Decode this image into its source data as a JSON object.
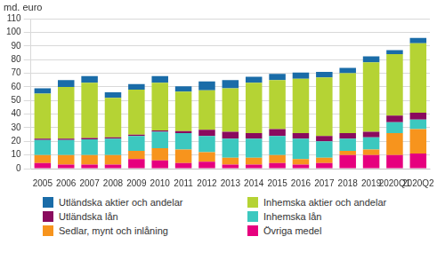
{
  "chart_data": {
    "type": "bar",
    "ylabel": "md. euro",
    "stacked": true,
    "grid": true,
    "legend": "bottom",
    "categories": [
      "2005",
      "2006",
      "2007",
      "2008",
      "2009",
      "2010",
      "2011",
      "2012",
      "2013",
      "2014",
      "2015",
      "2016",
      "2017",
      "2018",
      "2019",
      "2020Q1",
      "2020Q2"
    ],
    "ylim": [
      0,
      110
    ],
    "yticks": [
      0,
      10,
      20,
      30,
      40,
      50,
      60,
      70,
      80,
      90,
      100,
      110
    ],
    "series": [
      {
        "name": "Övriga medel",
        "color": "#e6007e",
        "values": [
          4,
          3,
          3,
          3,
          7,
          6,
          4,
          5,
          3,
          3,
          4,
          3,
          4,
          10,
          10,
          10,
          11
        ]
      },
      {
        "name": "Sedlar, mynt och inlåning",
        "color": "#f7941d",
        "values": [
          6,
          7,
          7,
          7,
          6,
          9,
          10,
          7,
          5,
          5,
          6,
          4,
          4,
          3,
          4,
          16,
          18
        ]
      },
      {
        "name": "Inhemska lån",
        "color": "#3cc8bf",
        "values": [
          11,
          11,
          11.5,
          12,
          11,
          12,
          12,
          12,
          14,
          14,
          14,
          15,
          12,
          9,
          9,
          8,
          7
        ]
      },
      {
        "name": "Utländska lån",
        "color": "#8a0b5e",
        "values": [
          1,
          1,
          1,
          1,
          1,
          1,
          1.5,
          4.5,
          5,
          4,
          5,
          4,
          4,
          4,
          4,
          5,
          5
        ]
      },
      {
        "name": "Inhemska aktier och andelar",
        "color": "#b5d334",
        "values": [
          33,
          38,
          40.5,
          29,
          33,
          35,
          29,
          29,
          32,
          37,
          36,
          40,
          43,
          44,
          51,
          45,
          51
        ]
      },
      {
        "name": "Utländska aktier och andelar",
        "color": "#1a6ca8",
        "values": [
          4,
          5,
          5,
          4,
          4,
          5,
          4,
          6.5,
          6,
          4.5,
          4.5,
          4.5,
          4,
          4,
          4.5,
          3,
          4
        ]
      }
    ]
  }
}
